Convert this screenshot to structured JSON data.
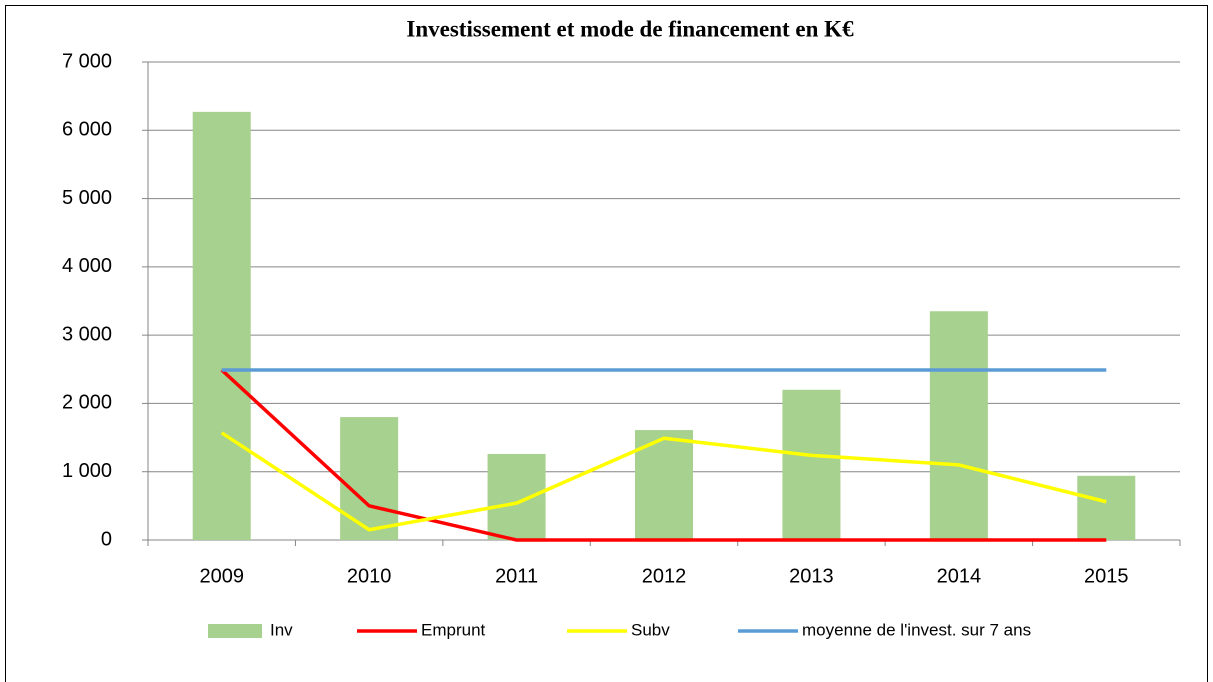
{
  "chart_data": {
    "type": "bar",
    "title": "Investissement et mode de financement en K€",
    "categories": [
      "2009",
      "2010",
      "2011",
      "2012",
      "2013",
      "2014",
      "2015"
    ],
    "series": [
      {
        "name": "Inv",
        "type": "bar",
        "color": "#a6d18f",
        "values": [
          6270,
          1800,
          1260,
          1610,
          2200,
          3350,
          940
        ]
      },
      {
        "name": "Emprunt",
        "type": "line",
        "color": "#ff0000",
        "values": [
          2490,
          500,
          0,
          0,
          0,
          0,
          0
        ]
      },
      {
        "name": "Subv",
        "type": "line",
        "color": "#ffff00",
        "values": [
          1570,
          150,
          540,
          1490,
          1240,
          1100,
          560
        ]
      },
      {
        "name": "moyenne de l'invest. sur 7 ans",
        "type": "line",
        "color": "#5b9bd5",
        "values": [
          2490,
          2490,
          2490,
          2490,
          2490,
          2490,
          2490
        ]
      }
    ],
    "ylim": [
      0,
      7000
    ],
    "yticks": [
      0,
      {
        "value": 1000,
        "label": "1 000"
      },
      {
        "value": 2000,
        "label": "2 000"
      },
      {
        "value": 3000,
        "label": "3 000"
      },
      {
        "value": 4000,
        "label": "4 000"
      },
      {
        "value": 5000,
        "label": "5 000"
      },
      {
        "value": 6000,
        "label": "6 000"
      },
      {
        "value": 7000,
        "label": "7 000"
      }
    ],
    "grid": true,
    "legend": "bottom"
  }
}
